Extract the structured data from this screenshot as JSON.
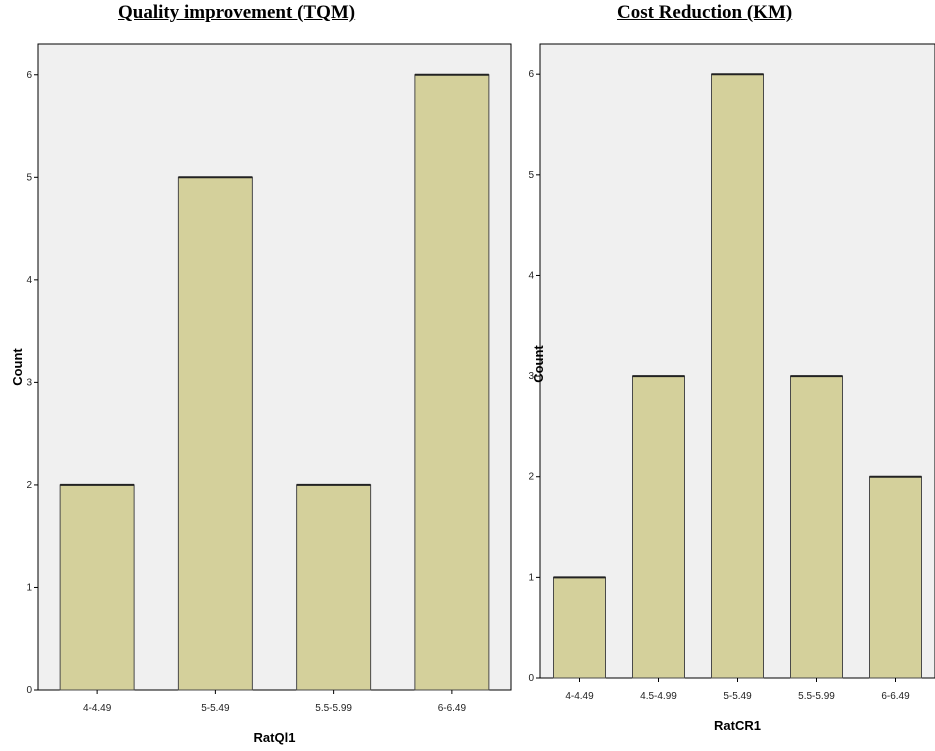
{
  "titles": {
    "left": "Quality improvement (TQM)",
    "right": "Cost Reduction (KM)"
  },
  "colors": {
    "bar_fill": "#d4d09b",
    "bar_stroke": "#4a4a4a",
    "plot_background": "#f0f0f0"
  },
  "chart_data": [
    {
      "type": "bar",
      "title": "Quality improvement (TQM)",
      "categories": [
        "4-4.49",
        "5-5.49",
        "5.5-5.99",
        "6-6.49"
      ],
      "values": [
        2,
        5,
        2,
        6
      ],
      "xlabel": "RatQl1",
      "ylabel": "Count",
      "ylim": [
        0,
        6.3
      ],
      "yticks": [
        0,
        1,
        2,
        3,
        4,
        5,
        6
      ],
      "grid": false
    },
    {
      "type": "bar",
      "title": "Cost Reduction (KM)",
      "categories": [
        "4-4.49",
        "4.5-4.99",
        "5-5.49",
        "5.5-5.99",
        "6-6.49"
      ],
      "values": [
        1,
        3,
        6,
        3,
        2
      ],
      "xlabel": "RatCR1",
      "ylabel": "Count",
      "ylim": [
        0,
        6.3
      ],
      "yticks": [
        0,
        1,
        2,
        3,
        4,
        5,
        6
      ],
      "grid": false
    }
  ]
}
